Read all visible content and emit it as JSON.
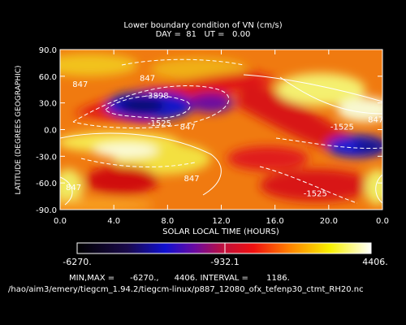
{
  "title_line1": "Lower boundary condition of VN (cm/s)",
  "title_line2": "DAY =  81   UT =   0.00",
  "chart_data": {
    "type": "heatmap",
    "xlabel": "SOLAR LOCAL TIME (HOURS)",
    "ylabel": "LATITUDE (DEGREES GEOGRAPHIC)",
    "xlim": [
      0,
      24
    ],
    "ylim": [
      -90,
      90
    ],
    "x_ticks": [
      "0.0",
      "4.0",
      "8.0",
      "12.0",
      "16.0",
      "20.0",
      "0.0"
    ],
    "y_ticks": [
      "-90.0",
      "-60.0",
      "-30.0",
      "0.0",
      "30.0",
      "60.0",
      "90.0"
    ],
    "contour_labels": [
      {
        "text": "847",
        "x": 1.0,
        "y": -68
      },
      {
        "text": "847",
        "x": 1.5,
        "y": 48
      },
      {
        "text": "847",
        "x": 6.5,
        "y": 55
      },
      {
        "text": "-3898",
        "x": 7.2,
        "y": 35
      },
      {
        "text": "-1525",
        "x": 7.4,
        "y": 4
      },
      {
        "text": "847",
        "x": 9.5,
        "y": 0
      },
      {
        "text": "847",
        "x": 9.8,
        "y": -58
      },
      {
        "text": "-1525",
        "x": 19.0,
        "y": -75
      },
      {
        "text": "-1525",
        "x": 21.0,
        "y": 0
      },
      {
        "text": "847",
        "x": 23.5,
        "y": 8
      }
    ],
    "min": -6270.0,
    "max": 4406.0,
    "interval": 1186.0,
    "colorbar_labels": [
      "-6270.",
      "-932.1",
      "4406."
    ]
  },
  "minmax_text": "MIN,MAX =      -6270.,      4406. INTERVAL =       1186.",
  "path_text": "/hao/aim3/emery/tiegcm_1.94.2/tiegcm-linux/p887_12080_ofx_tefenp30_ctmt_RH20.nc"
}
